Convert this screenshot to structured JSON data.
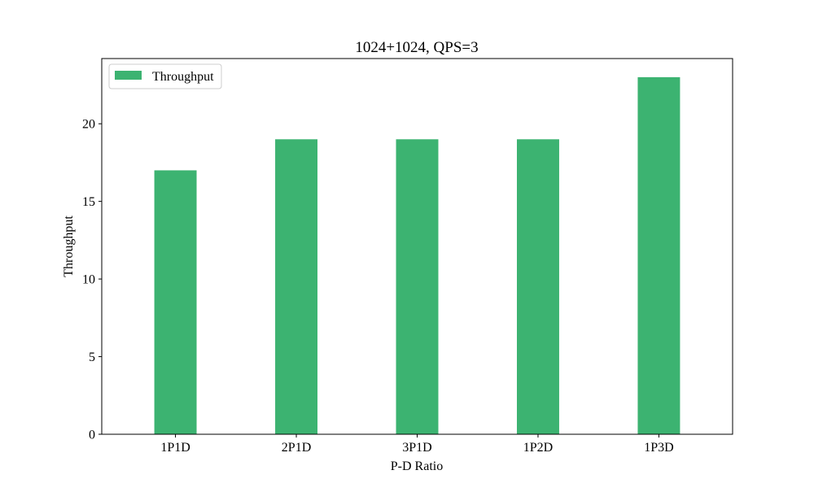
{
  "chart_data": {
    "type": "bar",
    "title": "1024+1024, QPS=3",
    "xlabel": "P-D Ratio",
    "ylabel": "Throughput",
    "categories": [
      "1P1D",
      "2P1D",
      "3P1D",
      "1P2D",
      "1P3D"
    ],
    "series": [
      {
        "name": "Throughput",
        "values": [
          17,
          19,
          19,
          19,
          23
        ],
        "color": "#3cb371"
      }
    ],
    "ylim": [
      0,
      24.2
    ],
    "yticks": [
      0,
      5,
      10,
      15,
      20
    ],
    "grid": false,
    "legend_position": "top-left"
  }
}
